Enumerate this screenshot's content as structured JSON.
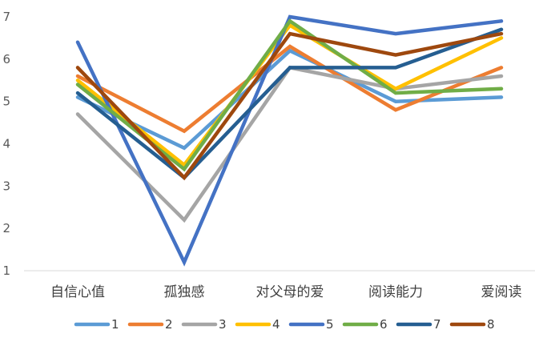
{
  "chart_data": {
    "type": "line",
    "title": "",
    "xlabel": "",
    "ylabel": "",
    "ylim": [
      1,
      7
    ],
    "yticks": [
      1,
      2,
      3,
      4,
      5,
      6,
      7
    ],
    "grid": false,
    "legend_position": "bottom",
    "categories": [
      "自信心值",
      "孤独感",
      "对父母的爱",
      "阅读能力",
      "爱阅读"
    ],
    "series": [
      {
        "name": "1",
        "color": "#5B9BD5",
        "values": [
          5.1,
          3.9,
          6.2,
          5.0,
          5.1
        ]
      },
      {
        "name": "2",
        "color": "#ED7D31",
        "values": [
          5.6,
          4.3,
          6.3,
          4.8,
          5.8
        ]
      },
      {
        "name": "3",
        "color": "#A5A5A5",
        "values": [
          4.7,
          2.2,
          5.8,
          5.3,
          5.6
        ]
      },
      {
        "name": "4",
        "color": "#FFC000",
        "values": [
          5.5,
          3.5,
          6.8,
          5.3,
          6.5
        ]
      },
      {
        "name": "5",
        "color": "#4472C4",
        "values": [
          6.4,
          1.2,
          7.0,
          6.6,
          6.9
        ]
      },
      {
        "name": "6",
        "color": "#70AD47",
        "values": [
          5.4,
          3.4,
          6.9,
          5.2,
          5.3
        ]
      },
      {
        "name": "7",
        "color": "#255E91",
        "values": [
          5.2,
          3.2,
          5.8,
          5.8,
          6.7
        ]
      },
      {
        "name": "8",
        "color": "#9E480E",
        "values": [
          5.8,
          3.2,
          6.6,
          6.1,
          6.6
        ]
      }
    ]
  }
}
